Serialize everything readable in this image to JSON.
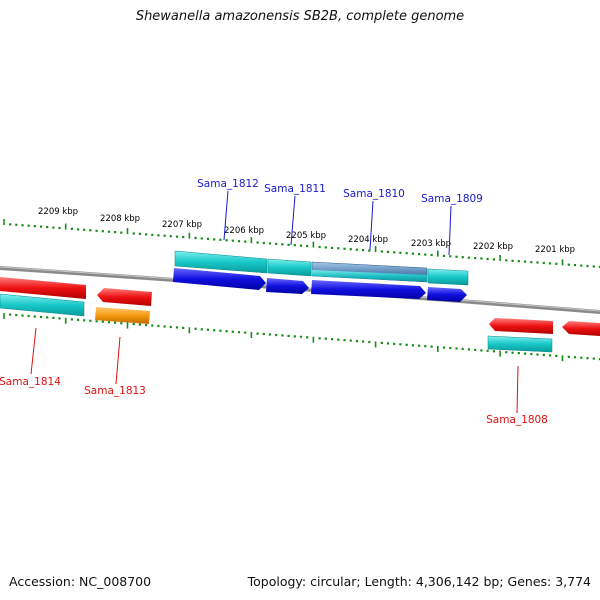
{
  "title": "Shewanella amazonensis SB2B, complete genome",
  "footer": {
    "accession_label": "Accession:",
    "accession": "NC_008700",
    "topology_text": "Topology: circular; Length: 4,306,142 bp; Genes: 3,774"
  },
  "colors": {
    "backbone": "#8a8a8a",
    "tick": "#1a8a1a",
    "forward_label": "#1a1acc",
    "reverse_label": "#dd1111",
    "forward_cds": "#1010e0",
    "reverse_cds": "#ee1111",
    "cyan_feature": "#19c8c8",
    "orange_feature": "#f59a10",
    "steel_feature": "#5a8ab8"
  },
  "kbp_labels": [
    "2209 kbp",
    "2208 kbp",
    "2207 kbp",
    "2206 kbp",
    "2205 kbp",
    "2204 kbp",
    "2203 kbp",
    "2202 kbp",
    "2201 kbp"
  ],
  "forward_genes": [
    "Sama_1812",
    "Sama_1811",
    "Sama_1810",
    "Sama_1809"
  ],
  "reverse_genes": [
    "Sama_1814",
    "Sama_1813",
    "Sama_1808"
  ]
}
